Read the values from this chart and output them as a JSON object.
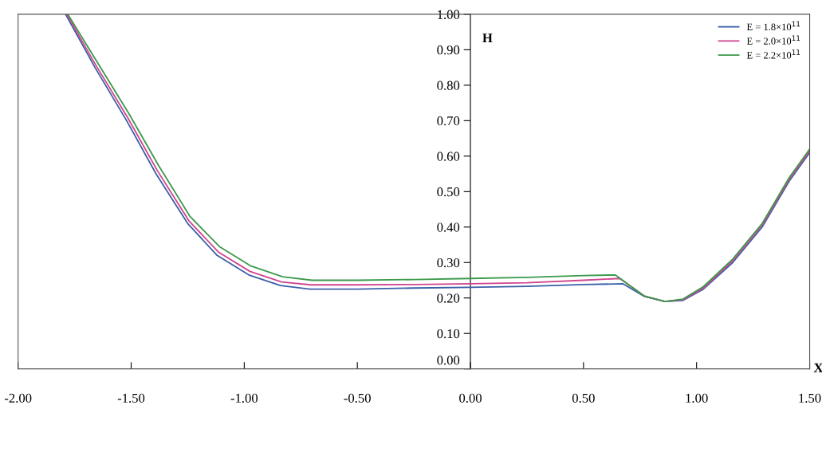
{
  "chart_data": {
    "type": "line",
    "xlabel": "X",
    "ylabel": "H",
    "xlim": [
      -2.0,
      1.5
    ],
    "ylim": [
      0.0,
      1.0
    ],
    "xticks": [
      {
        "value": -2.0,
        "label": "-2.00"
      },
      {
        "value": -1.5,
        "label": "-1.50"
      },
      {
        "value": -1.0,
        "label": "-1.00"
      },
      {
        "value": -0.5,
        "label": "-0.50"
      },
      {
        "value": 0.0,
        "label": "0.00"
      },
      {
        "value": 0.5,
        "label": "0.50"
      },
      {
        "value": 1.0,
        "label": "1.00"
      },
      {
        "value": 1.5,
        "label": "1.50"
      }
    ],
    "yticks": [
      {
        "value": 0.0,
        "label": "0.00"
      },
      {
        "value": 0.1,
        "label": "0.10"
      },
      {
        "value": 0.2,
        "label": "0.20"
      },
      {
        "value": 0.3,
        "label": "0.30"
      },
      {
        "value": 0.4,
        "label": "0.40"
      },
      {
        "value": 0.5,
        "label": "0.50"
      },
      {
        "value": 0.6,
        "label": "0.60"
      },
      {
        "value": 0.7,
        "label": "0.70"
      },
      {
        "value": 0.8,
        "label": "0.80"
      },
      {
        "value": 0.9,
        "label": "0.90"
      },
      {
        "value": 1.0,
        "label": "1.00"
      }
    ],
    "grid": false,
    "legend": "top right",
    "marker": "none",
    "line_style": "solid",
    "series": [
      {
        "name": "E = 1.8×10$^{11}$",
        "color": "#3a5fa8",
        "x": [
          -1.79,
          -1.66,
          -1.52,
          -1.39,
          -1.25,
          -1.12,
          -0.98,
          -0.84,
          -0.71,
          -0.5,
          -0.25,
          0.0,
          0.25,
          0.5,
          0.675,
          0.77,
          0.86,
          0.94,
          1.03,
          1.16,
          1.29,
          1.41,
          1.5
        ],
        "values": [
          1.0,
          0.85,
          0.7,
          0.55,
          0.41,
          0.32,
          0.265,
          0.235,
          0.225,
          0.225,
          0.228,
          0.23,
          0.233,
          0.238,
          0.24,
          0.204,
          0.19,
          0.193,
          0.225,
          0.3,
          0.4,
          0.53,
          0.61
        ]
      },
      {
        "name": "E = 2.0×10$^{11}$",
        "color": "#d0458e",
        "x": [
          -1.785,
          -1.655,
          -1.515,
          -1.385,
          -1.245,
          -1.115,
          -0.975,
          -0.835,
          -0.705,
          -0.5,
          -0.25,
          0.0,
          0.25,
          0.5,
          0.66,
          0.77,
          0.86,
          0.94,
          1.03,
          1.16,
          1.29,
          1.41,
          1.5
        ],
        "values": [
          1.0,
          0.855,
          0.708,
          0.56,
          0.418,
          0.33,
          0.275,
          0.245,
          0.237,
          0.237,
          0.238,
          0.24,
          0.243,
          0.25,
          0.255,
          0.205,
          0.19,
          0.195,
          0.228,
          0.305,
          0.405,
          0.535,
          0.615
        ]
      },
      {
        "name": "E = 2.2×10$^{11}$",
        "color": "#3b9a4c",
        "x": [
          -1.78,
          -1.65,
          -1.51,
          -1.38,
          -1.24,
          -1.11,
          -0.97,
          -0.83,
          -0.7,
          -0.5,
          -0.25,
          0.0,
          0.25,
          0.5,
          0.64,
          0.77,
          0.86,
          0.94,
          1.03,
          1.16,
          1.29,
          1.41,
          1.5
        ],
        "values": [
          1.0,
          0.865,
          0.72,
          0.575,
          0.43,
          0.345,
          0.29,
          0.26,
          0.25,
          0.25,
          0.252,
          0.255,
          0.258,
          0.263,
          0.265,
          0.205,
          0.19,
          0.197,
          0.232,
          0.31,
          0.41,
          0.54,
          0.62
        ]
      }
    ]
  }
}
